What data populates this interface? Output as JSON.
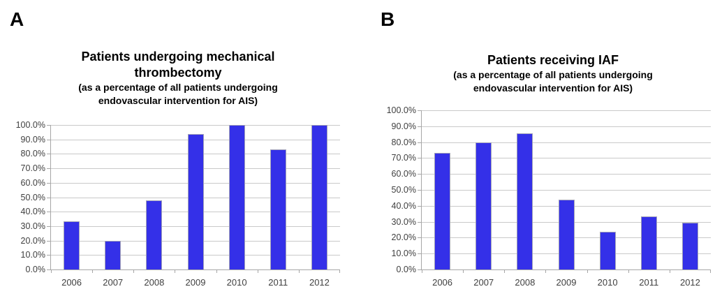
{
  "figure": {
    "background": "#ffffff"
  },
  "chart_data": [
    {
      "panel_label": "A",
      "type": "bar",
      "title_lines": [
        "Patients undergoing mechanical",
        "thrombectomy"
      ],
      "subtitle_lines": [
        "(as a percentage of all patients undergoing",
        "endovascular intervention for AIS)"
      ],
      "categories": [
        "2006",
        "2007",
        "2008",
        "2009",
        "2010",
        "2011",
        "2012"
      ],
      "values": [
        33.3,
        20.0,
        47.6,
        93.5,
        100.0,
        83.3,
        100.0
      ],
      "unit": "%",
      "xlabel": "",
      "ylabel": "",
      "ylim": [
        0,
        100
      ],
      "ytick_step": 10,
      "ytick_labels": [
        "0.0%",
        "10.0%",
        "20.0%",
        "30.0%",
        "40.0%",
        "50.0%",
        "60.0%",
        "70.0%",
        "80.0%",
        "90.0%",
        "100.0%"
      ],
      "grid": "horizontal",
      "legend": "none"
    },
    {
      "panel_label": "B",
      "type": "bar",
      "title_lines": [
        "Patients receiving IAF"
      ],
      "subtitle_lines": [
        "(as a percentage of all patients undergoing",
        "endovascular intervention for AIS)"
      ],
      "categories": [
        "2006",
        "2007",
        "2008",
        "2009",
        "2010",
        "2011",
        "2012"
      ],
      "values": [
        73.3,
        80.0,
        85.7,
        43.8,
        23.8,
        33.3,
        29.2
      ],
      "unit": "%",
      "xlabel": "",
      "ylabel": "",
      "ylim": [
        0,
        100
      ],
      "ytick_step": 10,
      "ytick_labels": [
        "0.0%",
        "10.0%",
        "20.0%",
        "30.0%",
        "40.0%",
        "50.0%",
        "60.0%",
        "70.0%",
        "80.0%",
        "90.0%",
        "100.0%"
      ],
      "grid": "horizontal",
      "legend": "none"
    }
  ],
  "colors": {
    "bar_fill": "#3430e8",
    "bar_border": "#a2a2b8",
    "gridline": "#c9c9c9",
    "axis": "#a6a6a6",
    "tick_label": "#3f3f3f",
    "title": "#000000",
    "background": "#ffffff"
  }
}
